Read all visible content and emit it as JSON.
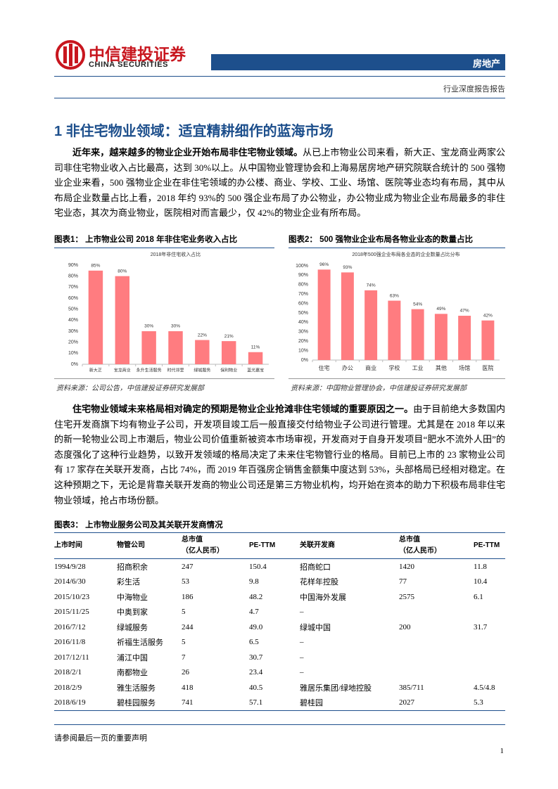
{
  "header": {
    "logo_cn": "中信建投证券",
    "logo_en": "CHINA SECURITIES",
    "sector": "房地产",
    "report_type": "行业深度报告报告"
  },
  "section": {
    "number": "1",
    "title": "非住宅物业领域：适宜精耕细作的蓝海市场"
  },
  "paragraphs": [
    {
      "lead": "近年来，越来越多的物业企业开始布局非住宅物业领域。",
      "text": "从已上市物业公司来看，新大正、宝龙商业两家公司非住宅物业收入占比最高，达到 30%以上。从中国物业管理协会和上海易居房地产研究院联合统计的 500 强物业企业来看，500 强物业企业在非住宅领域的办公楼、商业、学校、工业、场馆、医院等业态均有布局，其中从布局企业数量占比上看，2018 年约 93%的 500 强企业布局了办公物业，办公物业成为物业企业布局最多的非住宅业态，其次为商业物业，医院相对而言最少，仅 42%的物业企业有所布局。"
    },
    {
      "lead": "住宅物业领域未来格局相对确定的预期是物业企业抢滩非住宅领域的重要原因之一。",
      "text": "由于目前绝大多数国内住宅开发商旗下均有物业子公司，开发项目竣工后一般直接交付给物业子公司进行管理。尤其是在 2018 年以来的新一轮物业公司上市潮后，物业公司价值重新被资本市场审视，开发商对于自身开发项目“肥水不流外人田”的态度强化了这种行业趋势，以致开发领域的格局决定了未来住宅物管行业的格局。目前已上市的 23 家物业公司有 17 家存在关联开发商，占比 74%，而 2019 年百强房企销售金额集中度达到 53%，头部格局已经相对稳定。在这种预期之下，无论是背靠关联开发商的物业公司还是第三方物业机构，均开始在资本的助力下积极布局非住宅物业领域，抢占市场份额。"
    }
  ],
  "chart_data": [
    {
      "type": "bar",
      "figure_label": "图表1：",
      "caption": "上市物业公司 2018 年非住宅业务收入占比",
      "title": "2018年非住宅收入占比",
      "categories": [
        "新大正",
        "宝龙商业",
        "永升生活服务",
        "时代邻里",
        "绿城服务",
        "保利物业",
        "蓝光嘉宝"
      ],
      "values": [
        85,
        80,
        30,
        30,
        22,
        21,
        11
      ],
      "value_labels": [
        "85%",
        "80%",
        "30%",
        "30%",
        "22%",
        "21%",
        "11%"
      ],
      "color": "#ff7c80",
      "ylim": [
        0,
        90
      ],
      "yticks": [
        {
          "value": 0,
          "label": "0%"
        },
        {
          "value": 10,
          "label": "10%"
        },
        {
          "value": 20,
          "label": "20%"
        },
        {
          "value": 30,
          "label": "30%"
        },
        {
          "value": 40,
          "label": "40%"
        },
        {
          "value": 50,
          "label": "50%"
        },
        {
          "value": 60,
          "label": "60%"
        },
        {
          "value": 70,
          "label": "70%"
        },
        {
          "value": 80,
          "label": "80%"
        },
        {
          "value": 90,
          "label": "90%"
        }
      ],
      "source": "资料来源：公司公告，中信建投证券研究发展部"
    },
    {
      "type": "bar",
      "figure_label": "图表2：",
      "caption": "500 强物业企业布局各物业业态的数量占比",
      "title": "2018年500强企业布局各业态的企业数量占比分布",
      "categories": [
        "住宅",
        "办公",
        "商业",
        "学校",
        "工业",
        "其他",
        "场馆",
        "医院"
      ],
      "values": [
        96,
        93,
        74,
        63,
        54,
        49,
        47,
        42
      ],
      "value_labels": [
        "96%",
        "93%",
        "74%",
        "63%",
        "54%",
        "49%",
        "47%",
        "42%"
      ],
      "color": "#ff7c80",
      "ylim": [
        0,
        100
      ],
      "yticks": [
        {
          "value": 0,
          "label": "0%"
        },
        {
          "value": 10,
          "label": "10%"
        },
        {
          "value": 20,
          "label": "20%"
        },
        {
          "value": 30,
          "label": "30%"
        },
        {
          "value": 40,
          "label": "40%"
        },
        {
          "value": 50,
          "label": "50%"
        },
        {
          "value": 60,
          "label": "60%"
        },
        {
          "value": 70,
          "label": "70%"
        },
        {
          "value": 80,
          "label": "80%"
        },
        {
          "value": 90,
          "label": "90%"
        },
        {
          "value": 100,
          "label": "100%"
        }
      ],
      "source": "资料来源：中国物业管理协会，中信建投证券研究发展部"
    }
  ],
  "table": {
    "figure_label": "图表3：",
    "caption": "上市物业服务公司及其关联开发商情况",
    "headers": [
      [
        "上市时间"
      ],
      [
        "物管公司"
      ],
      [
        "总市值",
        "（亿人民币）"
      ],
      [
        "PE-TTM"
      ],
      [
        "关联开发商"
      ],
      [
        "总市值",
        "（亿人民币）"
      ],
      [
        "PE-TTM"
      ]
    ],
    "rows": [
      [
        "1994/9/28",
        "招商积余",
        "247",
        "150.4",
        "招商蛇口",
        "1420",
        "11.8"
      ],
      [
        "2014/6/30",
        "彩生活",
        "53",
        "9.8",
        "花样年控股",
        "77",
        "10.4"
      ],
      [
        "2015/10/23",
        "中海物业",
        "186",
        "48.2",
        "中国海外发展",
        "2575",
        "6.1"
      ],
      [
        "2015/11/25",
        "中奥到家",
        "5",
        "4.7",
        "–",
        null,
        null
      ],
      [
        "2016/7/12",
        "绿城服务",
        "244",
        "49.0",
        "绿城中国",
        "200",
        "31.7"
      ],
      [
        "2016/11/8",
        "祈福生活服务",
        "5",
        "6.5",
        "–",
        null,
        null
      ],
      [
        "2017/12/11",
        "浦江中国",
        "7",
        "30.7",
        "–",
        null,
        null
      ],
      [
        "2018/2/1",
        "南都物业",
        "26",
        "23.4",
        "–",
        null,
        null
      ],
      [
        "2018/2/9",
        "雅生活服务",
        "418",
        "40.5",
        "雅居乐集团/绿地控股",
        "385/711",
        "4.5/4.8"
      ],
      [
        "2018/6/19",
        "碧桂园服务",
        "741",
        "57.1",
        "碧桂园",
        "2027",
        "5.3"
      ]
    ]
  },
  "footer": {
    "disclaimer": "请参阅最后一页的重要声明",
    "page": "1"
  }
}
